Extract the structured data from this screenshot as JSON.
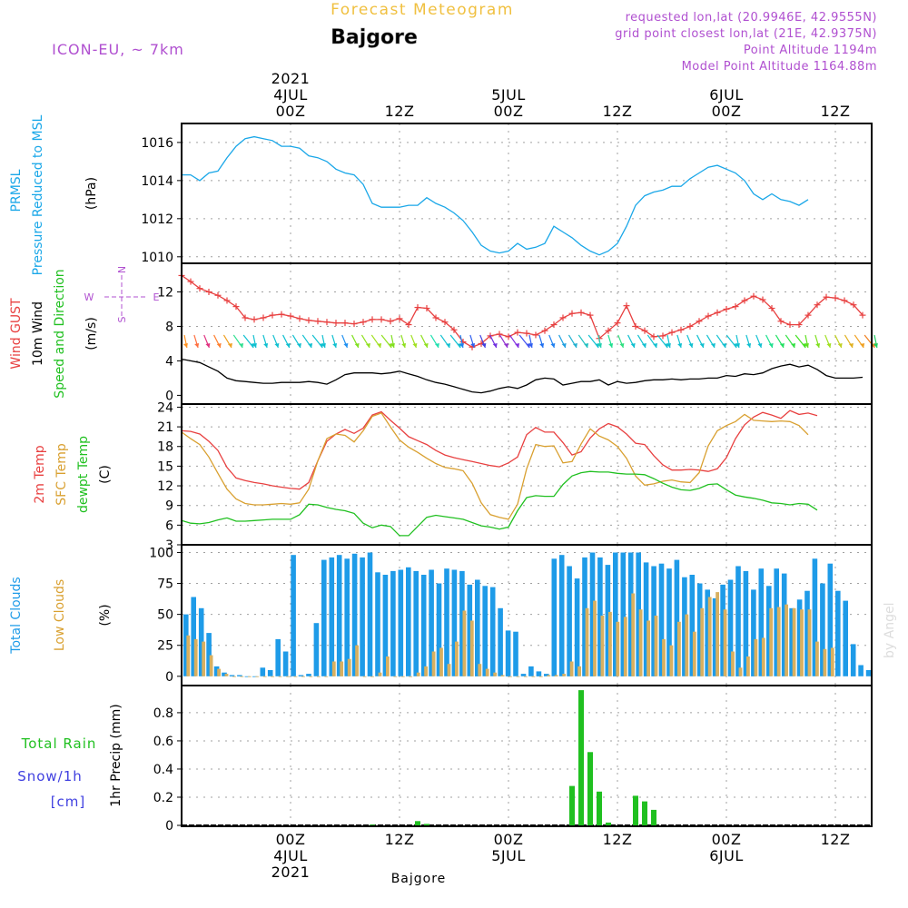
{
  "header": {
    "title_top": "Forecast Meteogram",
    "location": "Bajgore",
    "model": "ICON-EU, ~ 7km",
    "requested": "requested lon,lat (20.9946E, 42.9555N)",
    "grid_point": "grid point closest lon,lat (21E, 42.9375N)",
    "point_altitude": "Point Altitude 1194m",
    "model_altitude": "Model Point Altitude 1164.88m",
    "credit": "by Angel",
    "footer": "Bajgore"
  },
  "colors": {
    "pressure": "#1aa7e8",
    "gust": "#e84040",
    "wind": "#000000",
    "t2m": "#e84040",
    "sfc": "#d9a030",
    "dewpt": "#20c020",
    "total_clouds": "#1e9be8",
    "low_clouds": "#d8b060",
    "rain": "#20c020",
    "snow": "#4040e0",
    "purple": "#b050d0",
    "orange_title": "#f0c040"
  },
  "time_axis": {
    "top_labels": [
      {
        "t": 12,
        "lines": [
          "2021",
          "4JUL",
          "00Z"
        ]
      },
      {
        "t": 24,
        "lines": [
          "12Z"
        ]
      },
      {
        "t": 36,
        "lines": [
          "5JUL",
          "00Z"
        ]
      },
      {
        "t": 48,
        "lines": [
          "12Z"
        ]
      },
      {
        "t": 60,
        "lines": [
          "6JUL",
          "00Z"
        ]
      },
      {
        "t": 72,
        "lines": [
          "12Z"
        ]
      }
    ],
    "bottom_labels": [
      {
        "t": 12,
        "lines": [
          "00Z",
          "4JUL",
          "2021"
        ]
      },
      {
        "t": 24,
        "lines": [
          "12Z"
        ]
      },
      {
        "t": 36,
        "lines": [
          "00Z",
          "5JUL"
        ]
      },
      {
        "t": 48,
        "lines": [
          "12Z"
        ]
      },
      {
        "t": 60,
        "lines": [
          "00Z",
          "6JUL"
        ]
      },
      {
        "t": 72,
        "lines": [
          "12Z"
        ]
      }
    ],
    "range_hours": [
      0,
      76
    ]
  },
  "chart_data": [
    {
      "type": "line",
      "panel": "pressure",
      "title_lines": [
        "PRMSL",
        "Pressure Reduced to MSL"
      ],
      "ylabel": "(hPa)",
      "ylim": [
        1009.8,
        1016.9
      ],
      "yticks": [
        1010,
        1012,
        1014,
        1016
      ],
      "series": [
        {
          "name": "PRMSL",
          "color": "pressure",
          "values": [
            1014.3,
            1014.3,
            1014.0,
            1014.4,
            1014.5,
            1015.2,
            1015.8,
            1016.2,
            1016.3,
            1016.2,
            1016.1,
            1015.8,
            1015.8,
            1015.7,
            1015.3,
            1015.2,
            1015.0,
            1014.6,
            1014.4,
            1014.3,
            1013.8,
            1012.8,
            1012.6,
            1012.6,
            1012.6,
            1012.7,
            1012.7,
            1013.1,
            1012.8,
            1012.6,
            1012.3,
            1011.9,
            1011.3,
            1010.6,
            1010.3,
            1010.2,
            1010.3,
            1010.7,
            1010.4,
            1010.5,
            1010.7,
            1011.6,
            1011.3,
            1011.0,
            1010.6,
            1010.3,
            1010.1,
            1010.3,
            1010.7,
            1011.6,
            1012.7,
            1013.2,
            1013.4,
            1013.5,
            1013.7,
            1013.7,
            1014.1,
            1014.4,
            1014.7,
            1014.8,
            1014.6,
            1014.4,
            1014.0,
            1013.3,
            1013.0,
            1013.3,
            1013.0,
            1012.9,
            1012.7,
            1013.0
          ]
        }
      ]
    },
    {
      "type": "line",
      "panel": "wind",
      "title_lines": [
        "Wind GUST",
        "10m Wind",
        "Speed and Direction"
      ],
      "ylabel": "(m/s)",
      "compass": [
        "N",
        "W",
        "E",
        "S"
      ],
      "ylim": [
        -0.8,
        15.0
      ],
      "yticks": [
        0,
        4,
        8,
        12
      ],
      "series": [
        {
          "name": "Wind GUST",
          "color": "gust",
          "values": [
            13.9,
            13.2,
            12.4,
            12.0,
            11.6,
            11.0,
            10.3,
            9.0,
            8.8,
            9.0,
            9.3,
            9.4,
            9.2,
            8.9,
            8.7,
            8.6,
            8.5,
            8.4,
            8.4,
            8.3,
            8.5,
            8.8,
            8.8,
            8.6,
            8.9,
            8.2,
            10.2,
            10.1,
            9.0,
            8.5,
            7.6,
            6.2,
            5.6,
            6.0,
            6.9,
            7.1,
            6.8,
            7.3,
            7.2,
            7.0,
            7.5,
            8.2,
            9.0,
            9.5,
            9.6,
            9.3,
            6.6,
            7.5,
            8.4,
            10.4,
            8.0,
            7.5,
            6.8,
            6.9,
            7.3,
            7.6,
            8.0,
            8.6,
            9.2,
            9.6,
            10.0,
            10.3,
            11.0,
            11.5,
            11.1,
            10.1,
            8.6,
            8.2,
            8.2,
            9.3,
            10.5,
            11.4,
            11.3,
            11.0,
            10.5,
            9.3
          ]
        },
        {
          "name": "10m Wind",
          "color": "wind",
          "values": [
            4.2,
            4.0,
            3.8,
            3.3,
            2.8,
            2.0,
            1.7,
            1.6,
            1.5,
            1.4,
            1.4,
            1.5,
            1.5,
            1.5,
            1.6,
            1.5,
            1.3,
            1.8,
            2.4,
            2.6,
            2.6,
            2.6,
            2.5,
            2.6,
            2.8,
            2.5,
            2.2,
            1.8,
            1.5,
            1.3,
            1.0,
            0.7,
            0.4,
            0.3,
            0.5,
            0.8,
            1.0,
            0.8,
            1.2,
            1.8,
            2.0,
            1.9,
            1.2,
            1.4,
            1.6,
            1.6,
            1.8,
            1.2,
            1.6,
            1.4,
            1.5,
            1.7,
            1.8,
            1.8,
            1.9,
            1.8,
            1.9,
            1.9,
            2.0,
            2.0,
            2.3,
            2.2,
            2.5,
            2.4,
            2.6,
            3.1,
            3.4,
            3.6,
            3.3,
            3.5,
            3.0,
            2.3,
            2.0,
            2.0,
            2.0,
            2.1
          ]
        }
      ],
      "arrow_colors": [
        "#ff9020",
        "#ff7040",
        "#e03080",
        "#ff8030",
        "#f0a020",
        "#30e090",
        "#10c0d0",
        "#10c0d0",
        "#10c0d0",
        "#10c0d0",
        "#10c0d0",
        "#10c0d0",
        "#10c0d0",
        "#10c0d0",
        "#10c0d0",
        "#10c0d0",
        "#2090f0",
        "#80e020",
        "#90e020",
        "#a0e020",
        "#90e020",
        "#80e020",
        "#90e020",
        "#a0e020",
        "#90e020",
        "#20e0b0",
        "#10c0d0",
        "#10c0d0",
        "#2080f0",
        "#3060f0",
        "#4040e0",
        "#7030e0",
        "#9030d0",
        "#8030e0",
        "#4050f0",
        "#3060f0",
        "#2070f0",
        "#2080f0",
        "#20a0e0",
        "#20b0d0",
        "#20c0c0",
        "#10c0d0",
        "#20d0b0",
        "#20e090",
        "#30e080",
        "#10c0d0",
        "#10c0d0",
        "#10c0d0",
        "#10c0d0",
        "#10c0d0",
        "#10c0d0",
        "#10c0d0",
        "#10c0d0",
        "#10c0d0",
        "#10c0d0",
        "#10c0d0",
        "#10c0d0",
        "#10c0d0",
        "#10c0d0",
        "#20e090",
        "#20e060",
        "#30e040",
        "#40e020",
        "#60e020",
        "#80e020",
        "#a0e020",
        "#c0d020",
        "#e0b020",
        "#f0a020",
        "#f08020",
        "#20d060"
      ]
    },
    {
      "type": "line",
      "panel": "temperature",
      "title_lines": [
        "2m Temp",
        "SFC Temp",
        "dewpt Temp"
      ],
      "ylabel": "(C)",
      "ylim": [
        3,
        24.2
      ],
      "yticks": [
        3,
        6,
        9,
        12,
        15,
        18,
        21,
        24
      ],
      "series": [
        {
          "name": "2m Temp",
          "color": "t2m",
          "values": [
            20.4,
            20.3,
            19.9,
            18.8,
            17.4,
            14.8,
            13.2,
            12.8,
            12.5,
            12.3,
            12.0,
            11.8,
            11.6,
            11.5,
            12.5,
            15.8,
            18.8,
            19.9,
            20.6,
            20.0,
            20.8,
            22.8,
            23.3,
            22.0,
            20.8,
            19.5,
            18.9,
            18.3,
            17.4,
            16.7,
            16.3,
            16.0,
            15.7,
            15.4,
            15.1,
            14.9,
            15.5,
            16.4,
            19.8,
            20.9,
            20.2,
            20.2,
            18.6,
            16.7,
            17.2,
            19.3,
            20.7,
            21.5,
            21.0,
            19.9,
            18.5,
            18.3,
            16.6,
            15.2,
            14.4,
            14.4,
            14.5,
            14.4,
            14.2,
            14.6,
            16.3,
            19.2,
            21.3,
            22.5,
            23.2,
            22.8,
            22.3,
            23.5,
            22.9,
            23.1,
            22.7
          ]
        },
        {
          "name": "SFC Temp",
          "color": "sfc",
          "values": [
            20.2,
            19.2,
            18.3,
            16.4,
            13.9,
            11.5,
            10.0,
            9.3,
            9.1,
            9.1,
            9.2,
            9.3,
            9.2,
            9.4,
            11.5,
            15.8,
            19.2,
            19.9,
            19.7,
            18.7,
            20.4,
            22.6,
            23.1,
            21.0,
            19.0,
            17.9,
            17.1,
            16.2,
            15.4,
            14.8,
            14.6,
            14.3,
            12.4,
            9.4,
            7.6,
            7.2,
            6.9,
            9.2,
            14.6,
            18.3,
            18.0,
            18.1,
            15.5,
            15.7,
            18.4,
            20.7,
            19.6,
            19.0,
            18.0,
            16.2,
            13.5,
            12.1,
            12.3,
            12.7,
            12.9,
            12.6,
            12.5,
            14.0,
            18.1,
            20.4,
            21.2,
            21.8,
            22.9,
            22.0,
            21.9,
            21.8,
            21.9,
            21.8,
            21.2,
            19.8
          ]
        },
        {
          "name": "dewpt Temp",
          "color": "dewpt",
          "values": [
            6.7,
            6.3,
            6.2,
            6.4,
            6.8,
            7.1,
            6.6,
            6.6,
            6.7,
            6.8,
            6.9,
            6.9,
            6.9,
            7.6,
            9.2,
            9.1,
            8.7,
            8.4,
            8.2,
            7.8,
            6.3,
            5.6,
            6.0,
            5.8,
            4.4,
            4.4,
            5.8,
            7.2,
            7.5,
            7.3,
            7.1,
            6.9,
            6.4,
            5.9,
            5.7,
            5.4,
            5.7,
            8.2,
            10.2,
            10.5,
            10.4,
            10.4,
            12.2,
            13.5,
            14.0,
            14.2,
            14.1,
            14.1,
            13.9,
            13.8,
            13.8,
            13.7,
            13.1,
            12.4,
            11.8,
            11.4,
            11.3,
            11.6,
            12.2,
            12.3,
            11.4,
            10.6,
            10.3,
            10.1,
            9.8,
            9.4,
            9.3,
            9.1,
            9.3,
            9.2,
            8.3
          ]
        }
      ]
    },
    {
      "type": "bar",
      "panel": "clouds",
      "title_lines": [
        "Total Clouds",
        "Low Clouds"
      ],
      "ylabel": "(%)",
      "ylim": [
        -6,
        104
      ],
      "yticks": [
        0,
        25,
        50,
        75,
        100
      ],
      "series": [
        {
          "name": "Total Clouds",
          "color": "total_clouds",
          "values": [
            50,
            64,
            55,
            35,
            8,
            3,
            1,
            1,
            0,
            0,
            7,
            5,
            30,
            20,
            98,
            1,
            2,
            43,
            94,
            96,
            98,
            95,
            99,
            96,
            100,
            84,
            82,
            85,
            86,
            88,
            85,
            82,
            86,
            75,
            87,
            86,
            85,
            74,
            78,
            73,
            72,
            55,
            37,
            36,
            2,
            8,
            4,
            2,
            95,
            98,
            89,
            79,
            96,
            100,
            96,
            90,
            100,
            100,
            100,
            100,
            92,
            89,
            91,
            87,
            94,
            80,
            82,
            75,
            70,
            63,
            74,
            78,
            89,
            85,
            70,
            87,
            73,
            87,
            83,
            55,
            62,
            69,
            95,
            75,
            91,
            69,
            61,
            26,
            9,
            5
          ],
          "x_start": 0.0,
          "x_step": 1.0
        },
        {
          "name": "Low Clouds",
          "color": "low_clouds",
          "values": [
            33,
            30,
            28,
            17,
            6,
            2,
            0,
            0,
            0,
            0,
            0,
            0,
            0,
            0,
            0,
            0,
            0,
            0,
            0,
            12,
            12,
            14,
            25,
            0,
            0,
            3,
            16,
            0,
            0,
            0,
            3,
            8,
            20,
            23,
            10,
            28,
            53,
            45,
            10,
            6,
            3,
            1,
            0,
            0,
            0,
            0,
            0,
            1,
            1,
            2,
            12,
            8,
            55,
            61,
            49,
            52,
            44,
            48,
            67,
            54,
            45,
            49,
            30,
            25,
            44,
            50,
            36,
            55,
            64,
            68,
            54,
            20,
            7,
            16,
            30,
            31,
            55,
            56,
            58,
            55,
            54,
            54,
            28,
            22,
            23
          ],
          "x_start": 0.4,
          "x_step": 1.0
        }
      ]
    },
    {
      "type": "bar",
      "panel": "precip",
      "title_lines": [
        "Total  Rain",
        "Snow/1h",
        "[cm]"
      ],
      "ylabel": "1hr Precip (mm)",
      "ylim": [
        0,
        0.98
      ],
      "yticks": [
        0,
        0.2,
        0.4,
        0.6,
        0.8
      ],
      "ytick_labels": [
        "0",
        "0.2",
        "0.4",
        "0.6",
        "0.8"
      ],
      "series": [
        {
          "name": "Total Rain",
          "color": "rain",
          "points": [
            [
              21,
              0.005
            ],
            [
              26,
              0.03
            ],
            [
              27,
              0.01
            ],
            [
              43,
              0.28
            ],
            [
              44,
              0.96
            ],
            [
              45,
              0.52
            ],
            [
              46,
              0.24
            ],
            [
              47,
              0.02
            ],
            [
              50,
              0.21
            ],
            [
              51,
              0.17
            ],
            [
              52,
              0.11
            ]
          ]
        }
      ]
    }
  ]
}
